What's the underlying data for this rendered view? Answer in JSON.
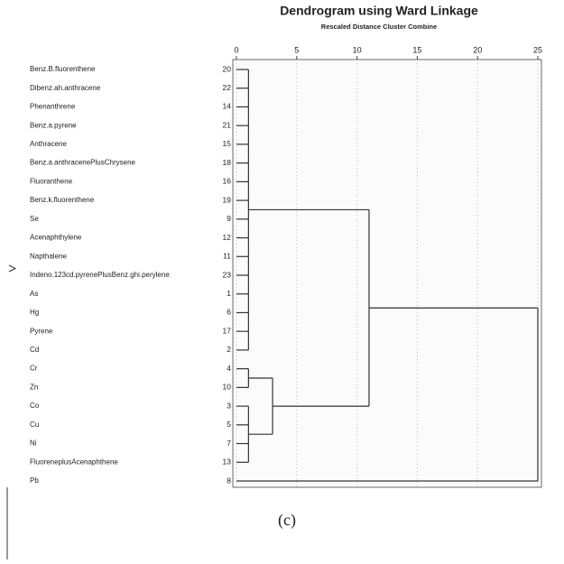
{
  "chart_data": {
    "type": "dendrogram",
    "title": "Dendrogram using Ward Linkage",
    "subtitle": "Rescaled Distance Cluster Combine",
    "xlim": [
      0,
      25
    ],
    "xticks": [
      0,
      5,
      10,
      15,
      20,
      25
    ],
    "grid": true,
    "leaves": [
      "Benz.B.fluorenthene",
      "Dibenz.ah.anthracene",
      "Phenanthrene",
      "Benz.a.pyrene",
      "Anthracene",
      "Benz.a.anthracenePlusChrysene",
      "Fluoranthene",
      "Benz.k.fluorenthene",
      "Se",
      "Acenaphthylene",
      "Napthalene",
      "Indeno.123cd.pyrenePlusBenz.ghi.perylene",
      "As",
      "Hg",
      "Pyrene",
      "Cd",
      "Cr",
      "Zn",
      "Co",
      "Cu",
      "Ni",
      "FluoreneplusAcenaphthene",
      "Pb"
    ],
    "case_numbers": [
      20,
      22,
      14,
      21,
      15,
      18,
      16,
      19,
      9,
      12,
      11,
      23,
      1,
      6,
      17,
      2,
      4,
      10,
      3,
      5,
      7,
      13,
      8
    ],
    "merges": [
      {
        "children": [
          0,
          1,
          2,
          3,
          4,
          5,
          6,
          7,
          8,
          9,
          10,
          11,
          12,
          13,
          14,
          15
        ],
        "height": 1
      },
      {
        "children": [
          16,
          17
        ],
        "height": 1
      },
      {
        "children": [
          18,
          19,
          20,
          21
        ],
        "height": 1
      },
      {
        "children": [
          24,
          25
        ],
        "height": 3
      },
      {
        "children": [
          23,
          26
        ],
        "height": 11
      },
      {
        "children": [
          27,
          22
        ],
        "height": 25
      }
    ],
    "color": "#333333"
  },
  "caption": "(c)"
}
